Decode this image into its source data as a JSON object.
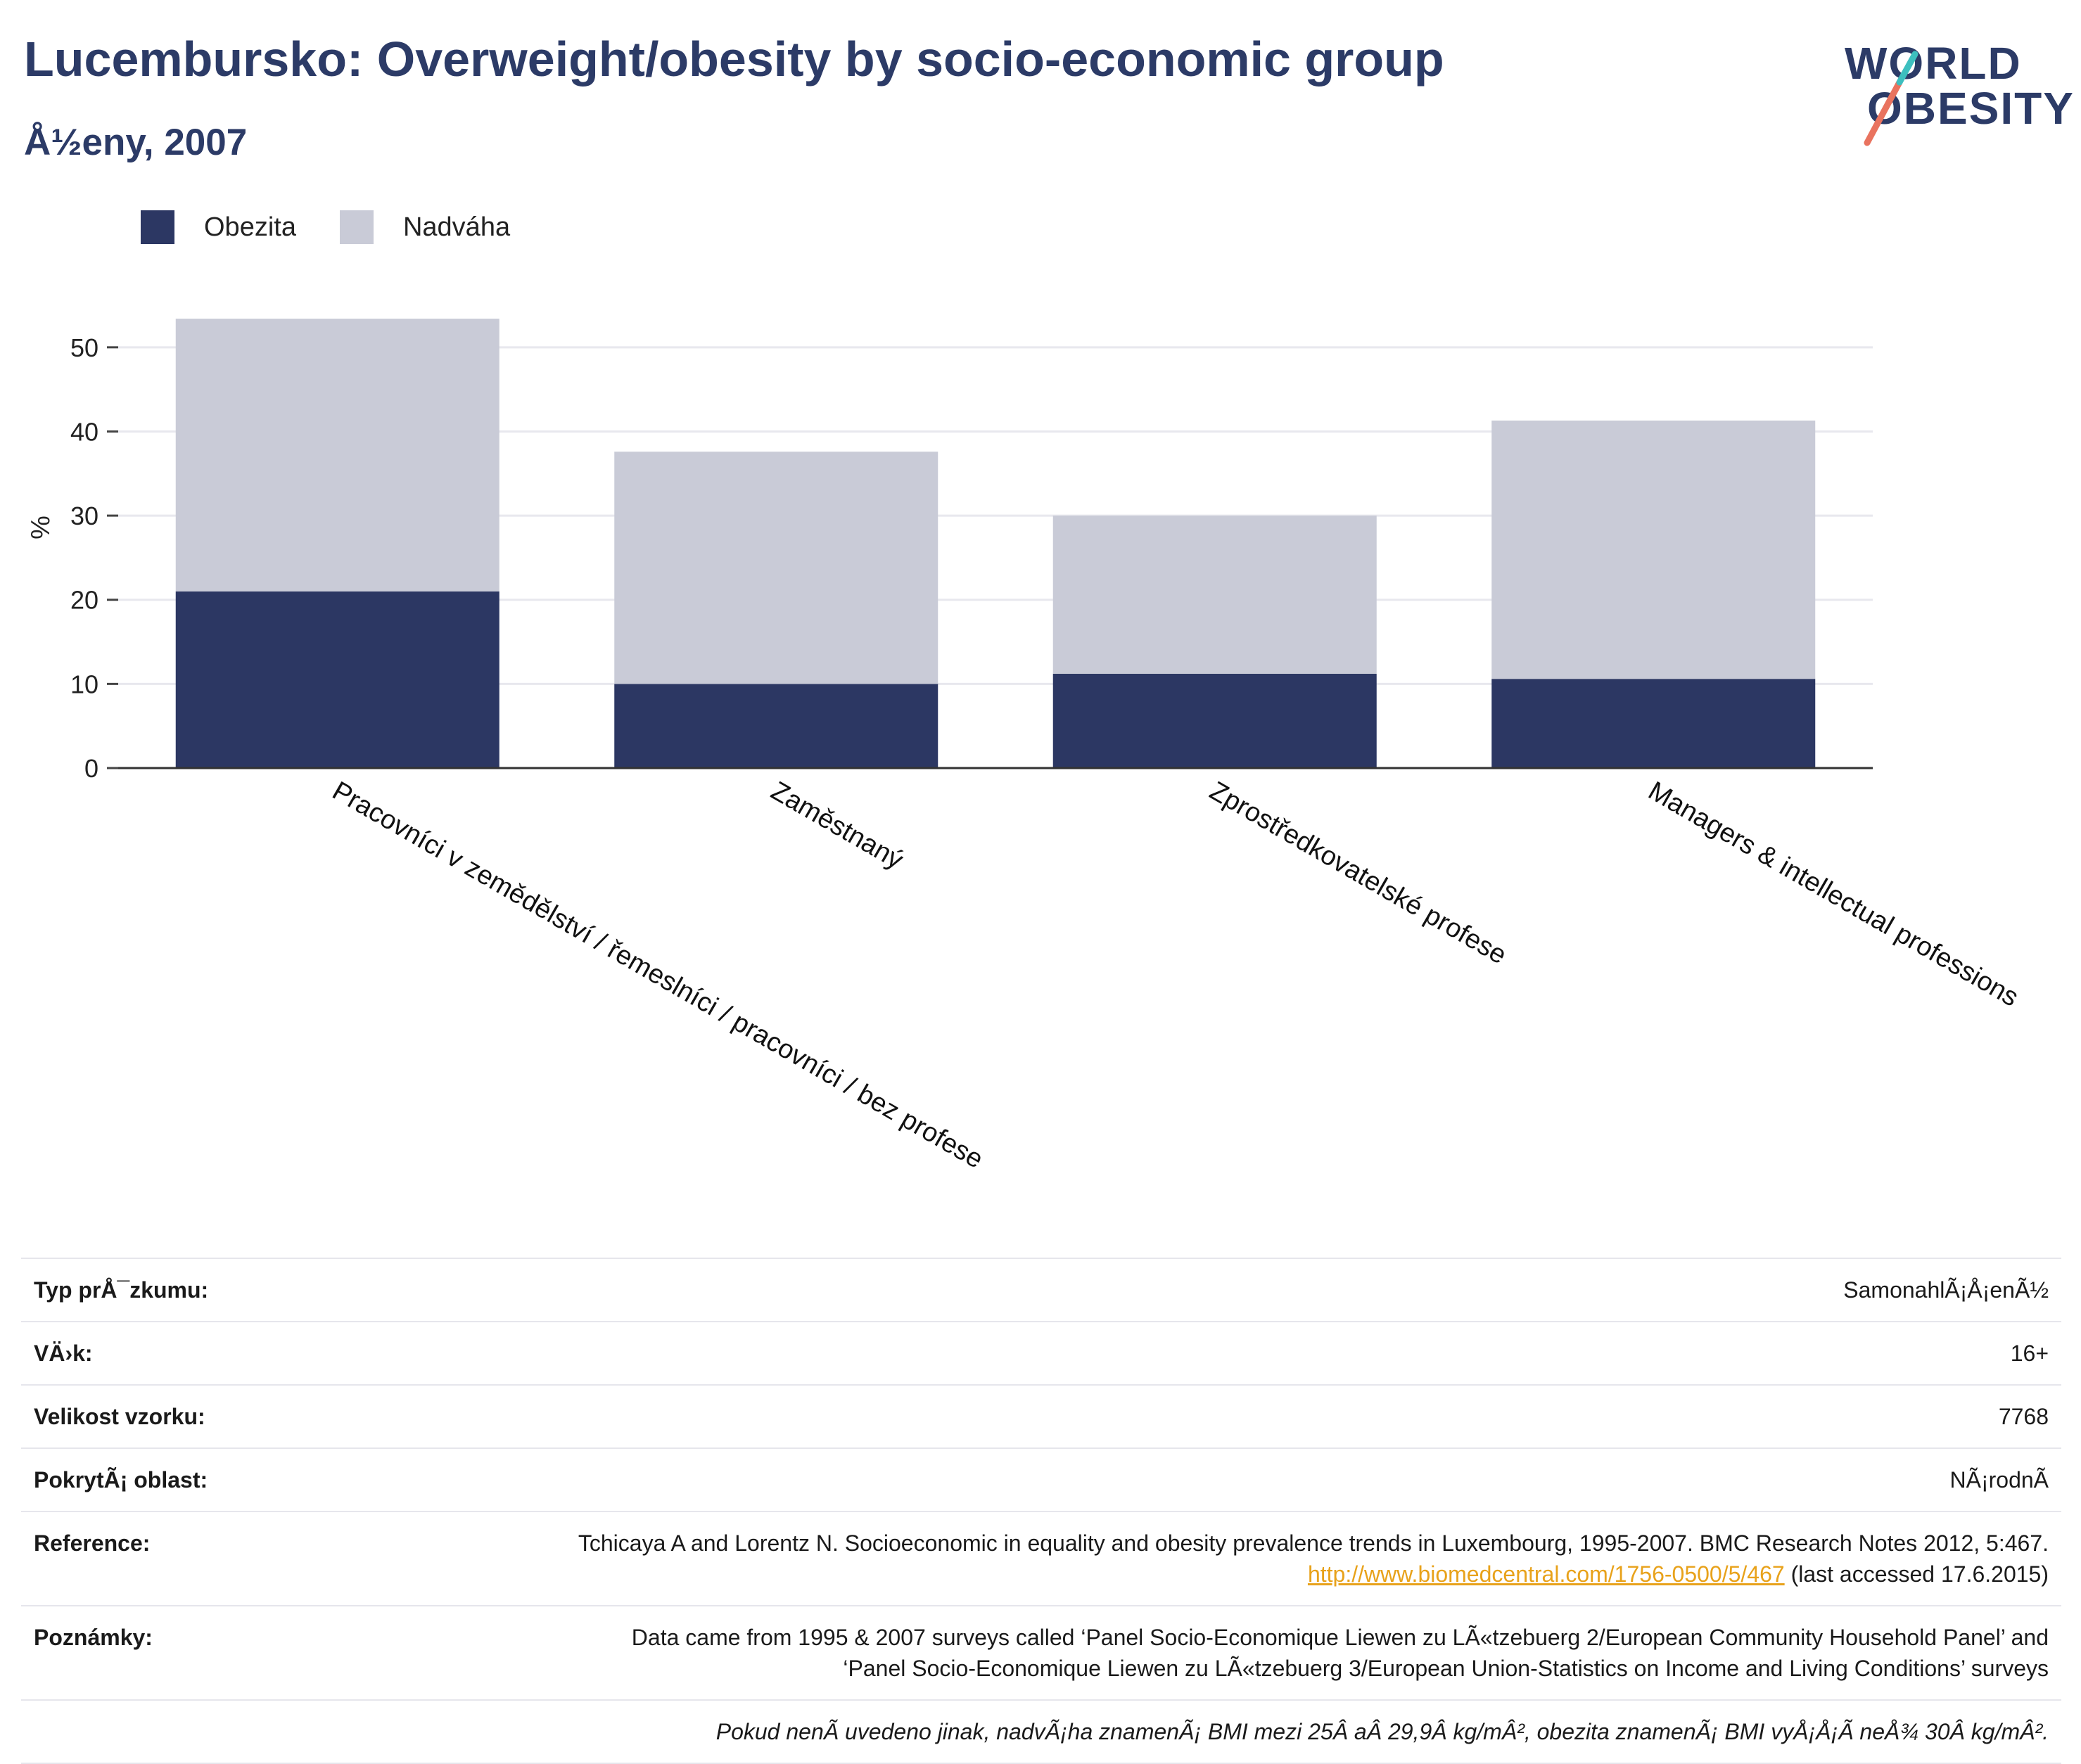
{
  "header": {
    "title": "Lucembursko: Overweight/obesity by socio-economic group",
    "subtitle": "Å½eny, 2007"
  },
  "logo": {
    "line1": "WORLD",
    "line2": "OBESITY",
    "accent": "#e9735f",
    "accent2": "#3dbfbf"
  },
  "legend": [
    {
      "label": "Obezita",
      "color": "#2c3763"
    },
    {
      "label": "Nadváha",
      "color": "#c9cbd7"
    }
  ],
  "chart_data": {
    "type": "bar",
    "stacked": true,
    "categories": [
      "Pracovníci v zemědělství / řemeslníci / pracovníci / bez profese",
      "Zaměstnaný",
      "Zprostředkovatelské profese",
      "Managers & intellectual professions"
    ],
    "series": [
      {
        "name": "Obezita",
        "color": "#2c3763",
        "values": [
          21.0,
          10.0,
          11.2,
          10.6
        ]
      },
      {
        "name": "Nadváha",
        "color": "#c9cbd7",
        "values": [
          32.4,
          27.6,
          18.8,
          30.7
        ]
      }
    ],
    "ylabel": "%",
    "ylim": [
      0,
      55
    ],
    "yticks": [
      0,
      10,
      20,
      30,
      40,
      50
    ],
    "grid": true
  },
  "meta": {
    "rows": [
      {
        "key": "Typ prÅ¯zkumu:",
        "value": "SamonahlÃ¡Å¡enÃ½"
      },
      {
        "key": "VÄ›k:",
        "value": "16+"
      },
      {
        "key": "Velikost vzorku:",
        "value": "7768"
      },
      {
        "key": "PokrytÃ¡ oblast:",
        "value": "NÃ¡rodnÃ"
      }
    ],
    "reference_key": "Reference:",
    "reference_text": "Tchicaya A and Lorentz N. Socioeconomic in equality and obesity prevalence trends in Luxembourg, 1995-2007. BMC Research Notes 2012, 5:467. ",
    "reference_link": "http://www.biomedcentral.com/1756-0500/5/467",
    "reference_tail": " (last accessed 17.6.2015)",
    "notes_key": "Poznámky:",
    "notes_text": "Data came from 1995 & 2007 surveys called ‘Panel Socio-Economique Liewen zu LÃ«tzebuerg 2/European Community Household Panel’ and ‘Panel Socio-Economique Liewen zu LÃ«tzebuerg 3/European Union-Statistics on Income and Living Conditions’ surveys",
    "footnote": "Pokud nenÃ uvedeno jinak, nadvÃ¡ha znamenÃ¡ BMI mezi 25Â aÂ 29,9Â kg/mÂ², obezita znamenÃ¡ BMI vyÅ¡Å¡Ã neÅ¾ 30Â kg/mÂ²."
  }
}
